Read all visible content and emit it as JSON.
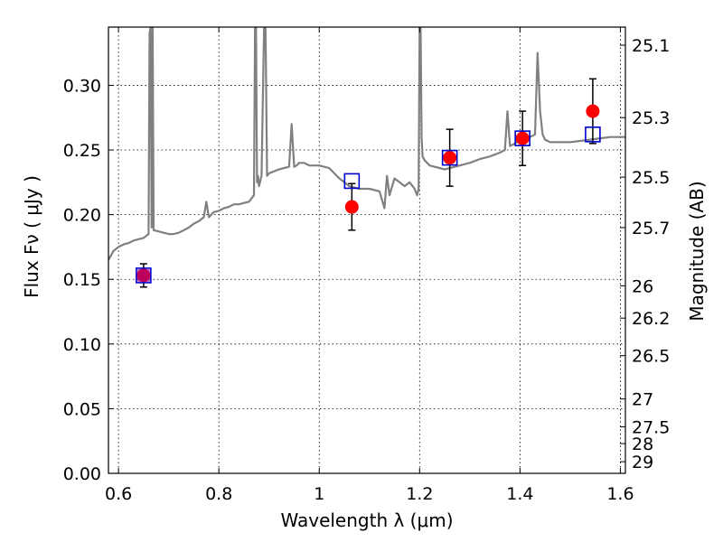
{
  "chart_data": {
    "type": "scatter",
    "xlabel": "Wavelength  λ (μm)",
    "ylabel": "Flux  Fν  ( μJy )",
    "ylabel_right": "Magnitude (AB)",
    "xlim": [
      0.58,
      1.61
    ],
    "ylim": [
      0.0,
      0.345
    ],
    "xticks": [
      0.6,
      0.8,
      1.0,
      1.2,
      1.4,
      1.6
    ],
    "xtick_labels": [
      "0.6",
      "0.8",
      "1",
      "1.2",
      "1.4",
      "1.6"
    ],
    "yticks": [
      0.0,
      0.05,
      0.1,
      0.15,
      0.2,
      0.25,
      0.3
    ],
    "ytick_labels": [
      "0.00",
      "0.05",
      "0.10",
      "0.15",
      "0.20",
      "0.25",
      "0.30"
    ],
    "right_ticks": [
      {
        "label": "25.1",
        "flux": 0.331
      },
      {
        "label": "25.3",
        "flux": 0.275
      },
      {
        "label": "25.5",
        "flux": 0.229
      },
      {
        "label": "25.7",
        "flux": 0.19
      },
      {
        "label": "26",
        "flux": 0.145
      },
      {
        "label": "26.2",
        "flux": 0.12
      },
      {
        "label": "26.5",
        "flux": 0.091
      },
      {
        "label": "27",
        "flux": 0.0575
      },
      {
        "label": "27.5",
        "flux": 0.036
      },
      {
        "label": "28",
        "flux": 0.023
      },
      {
        "label": "29",
        "flux": 0.009
      }
    ],
    "grid": true,
    "series": [
      {
        "marker": "line",
        "color": "#808080",
        "x": [
          0.58,
          0.59,
          0.6,
          0.61,
          0.62,
          0.63,
          0.64,
          0.65,
          0.66,
          0.662,
          0.664,
          0.666,
          0.668,
          0.67,
          0.68,
          0.69,
          0.7,
          0.71,
          0.72,
          0.73,
          0.74,
          0.75,
          0.76,
          0.77,
          0.775,
          0.78,
          0.785,
          0.79,
          0.8,
          0.81,
          0.82,
          0.83,
          0.84,
          0.85,
          0.86,
          0.87,
          0.872,
          0.874,
          0.876,
          0.878,
          0.88,
          0.885,
          0.89,
          0.893,
          0.896,
          0.9,
          0.92,
          0.94,
          0.945,
          0.95,
          0.955,
          0.96,
          0.97,
          0.98,
          1.0,
          1.02,
          1.04,
          1.06,
          1.08,
          1.1,
          1.12,
          1.13,
          1.135,
          1.14,
          1.15,
          1.16,
          1.17,
          1.18,
          1.19,
          1.195,
          1.198,
          1.2,
          1.202,
          1.204,
          1.206,
          1.21,
          1.22,
          1.25,
          1.28,
          1.3,
          1.32,
          1.34,
          1.36,
          1.37,
          1.375,
          1.38,
          1.39,
          1.4,
          1.41,
          1.42,
          1.43,
          1.435,
          1.44,
          1.445,
          1.45,
          1.46,
          1.48,
          1.5,
          1.52,
          1.54,
          1.56,
          1.58,
          1.6,
          1.61
        ],
        "y": [
          0.165,
          0.172,
          0.175,
          0.177,
          0.178,
          0.18,
          0.181,
          0.182,
          0.185,
          0.34,
          0.345,
          0.19,
          0.345,
          0.188,
          0.187,
          0.186,
          0.185,
          0.185,
          0.186,
          0.188,
          0.19,
          0.193,
          0.195,
          0.198,
          0.21,
          0.198,
          0.2,
          0.202,
          0.203,
          0.205,
          0.206,
          0.208,
          0.208,
          0.209,
          0.21,
          0.215,
          0.345,
          0.345,
          0.225,
          0.23,
          0.222,
          0.23,
          0.345,
          0.345,
          0.23,
          0.232,
          0.235,
          0.237,
          0.27,
          0.237,
          0.238,
          0.24,
          0.24,
          0.238,
          0.238,
          0.236,
          0.228,
          0.222,
          0.22,
          0.22,
          0.218,
          0.205,
          0.23,
          0.215,
          0.228,
          0.225,
          0.222,
          0.225,
          0.22,
          0.215,
          0.22,
          0.345,
          0.345,
          0.26,
          0.245,
          0.242,
          0.238,
          0.235,
          0.238,
          0.24,
          0.243,
          0.245,
          0.248,
          0.25,
          0.28,
          0.253,
          0.255,
          0.258,
          0.26,
          0.26,
          0.262,
          0.325,
          0.28,
          0.262,
          0.258,
          0.256,
          0.256,
          0.256,
          0.257,
          0.258,
          0.259,
          0.26,
          0.26,
          0.26
        ]
      },
      {
        "marker": "circle",
        "color": "#ff0000",
        "x": [
          0.65,
          1.065,
          1.26,
          1.405,
          1.545
        ],
        "y": [
          0.153,
          0.206,
          0.244,
          0.259,
          0.28
        ],
        "err": [
          0.009,
          0.018,
          0.022,
          0.021,
          0.025
        ]
      },
      {
        "marker": "square",
        "color": "#0000cc",
        "x": [
          0.65,
          1.065,
          1.26,
          1.405,
          1.545
        ],
        "y": [
          0.153,
          0.226,
          0.244,
          0.259,
          0.262
        ]
      }
    ]
  }
}
